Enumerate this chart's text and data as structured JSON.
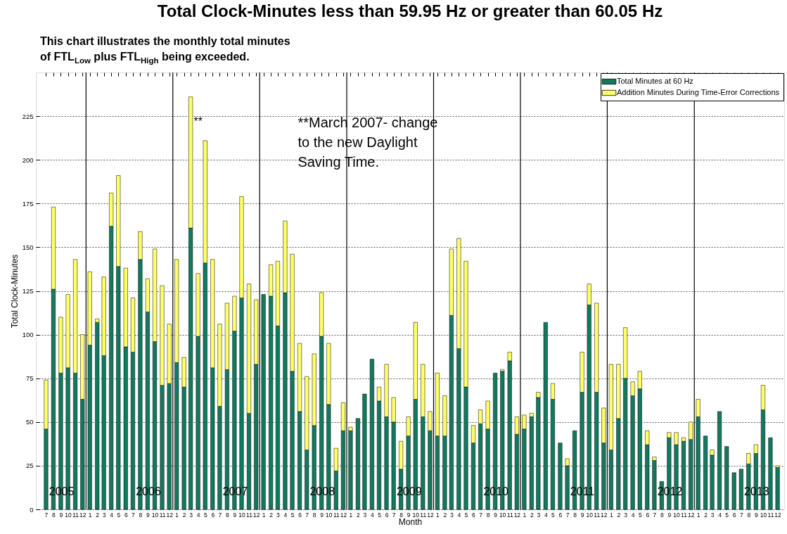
{
  "chart_data": {
    "type": "bar",
    "stacked": true,
    "title": "Total Clock-Minutes less than 59.95 Hz or greater than 60.05 Hz",
    "subtitle": "This chart illustrates the monthly total minutes\nof FTL$_{Low}$ plus FTL$_{High}$ being exceeded.",
    "xlabel": "Month",
    "ylabel": "Total Clock-Minutes",
    "x": [
      "2005-07",
      "2005-08",
      "2005-09",
      "2005-10",
      "2005-11",
      "2005-12",
      "2006-01",
      "2006-02",
      "2006-03",
      "2006-04",
      "2006-05",
      "2006-06",
      "2006-07",
      "2006-08",
      "2006-09",
      "2006-10",
      "2006-11",
      "2006-12",
      "2007-01",
      "2007-02",
      "2007-03",
      "2007-04",
      "2007-05",
      "2007-06",
      "2007-07",
      "2007-08",
      "2007-09",
      "2007-10",
      "2007-11",
      "2007-12",
      "2008-01",
      "2008-02",
      "2008-03",
      "2008-04",
      "2008-05",
      "2008-06",
      "2008-07",
      "2008-08",
      "2008-09",
      "2008-10",
      "2008-11",
      "2008-12",
      "2009-01",
      "2009-02",
      "2009-03",
      "2009-04",
      "2009-05",
      "2009-06",
      "2009-07",
      "2009-08",
      "2009-09",
      "2009-10",
      "2009-11",
      "2009-12",
      "2010-01",
      "2010-02",
      "2010-03",
      "2010-04",
      "2010-05",
      "2010-06",
      "2010-07",
      "2010-08",
      "2010-09",
      "2010-10",
      "2010-11",
      "2010-12",
      "2011-01",
      "2011-02",
      "2011-03",
      "2011-04",
      "2011-05",
      "2011-06",
      "2011-07",
      "2011-08",
      "2011-09",
      "2011-10",
      "2011-11",
      "2011-12",
      "2012-01",
      "2012-02",
      "2012-03",
      "2012-04",
      "2012-05",
      "2012-06",
      "2012-07",
      "2012-08",
      "2012-09",
      "2012-10",
      "2012-11",
      "2012-12",
      "2013-01",
      "2013-02",
      "2013-03",
      "2013-04",
      "2013-05",
      "2013-06",
      "2013-07",
      "2013-08",
      "2013-09",
      "2013-10",
      "2013-11",
      "2013-12"
    ],
    "xlim": [
      "2005-06-03",
      "2013-12-14"
    ],
    "xticks": [
      {
        "value": "2005-07",
        "label": "7"
      },
      {
        "value": "2005-08",
        "label": "8"
      },
      {
        "value": "2005-09",
        "label": "9"
      },
      {
        "value": "2005-10",
        "label": "10"
      },
      {
        "value": "2005-11",
        "label": "11"
      },
      {
        "value": "2005-12",
        "label": "12"
      },
      {
        "value": "2006-01",
        "label": "1"
      },
      {
        "value": "2006-02",
        "label": "2"
      },
      {
        "value": "2006-03",
        "label": "3"
      },
      {
        "value": "2006-04",
        "label": "4"
      },
      {
        "value": "2006-05",
        "label": "5"
      },
      {
        "value": "2006-06",
        "label": "6"
      },
      {
        "value": "2006-07",
        "label": "7"
      },
      {
        "value": "2006-08",
        "label": "8"
      },
      {
        "value": "2006-09",
        "label": "9"
      },
      {
        "value": "2006-10",
        "label": "10"
      },
      {
        "value": "2006-11",
        "label": "11"
      },
      {
        "value": "2006-12",
        "label": "12"
      },
      {
        "value": "2007-01",
        "label": "1"
      },
      {
        "value": "2007-02",
        "label": "2"
      },
      {
        "value": "2007-03",
        "label": "3"
      },
      {
        "value": "2007-04",
        "label": "4"
      },
      {
        "value": "2007-05",
        "label": "5"
      },
      {
        "value": "2007-06",
        "label": "6"
      },
      {
        "value": "2007-07",
        "label": "7"
      },
      {
        "value": "2007-08",
        "label": "8"
      },
      {
        "value": "2007-09",
        "label": "9"
      },
      {
        "value": "2007-10",
        "label": "10"
      },
      {
        "value": "2007-11",
        "label": "11"
      },
      {
        "value": "2007-12",
        "label": "12"
      },
      {
        "value": "2008-01",
        "label": "1"
      },
      {
        "value": "2008-02",
        "label": "2"
      },
      {
        "value": "2008-03",
        "label": "3"
      },
      {
        "value": "2008-04",
        "label": "4"
      },
      {
        "value": "2008-05",
        "label": "5"
      },
      {
        "value": "2008-06",
        "label": "6"
      },
      {
        "value": "2008-07",
        "label": "7"
      },
      {
        "value": "2008-08",
        "label": "8"
      },
      {
        "value": "2008-09",
        "label": "9"
      },
      {
        "value": "2008-10",
        "label": "10"
      },
      {
        "value": "2008-11",
        "label": "11"
      },
      {
        "value": "2008-12",
        "label": "12"
      },
      {
        "value": "2009-01",
        "label": "1"
      },
      {
        "value": "2009-02",
        "label": "2"
      },
      {
        "value": "2009-03",
        "label": "3"
      },
      {
        "value": "2009-04",
        "label": "4"
      },
      {
        "value": "2009-05",
        "label": "5"
      },
      {
        "value": "2009-06",
        "label": "6"
      },
      {
        "value": "2009-07",
        "label": "7"
      },
      {
        "value": "2009-08",
        "label": "8"
      },
      {
        "value": "2009-09",
        "label": "9"
      },
      {
        "value": "2009-10",
        "label": "10"
      },
      {
        "value": "2009-11",
        "label": "11"
      },
      {
        "value": "2009-12",
        "label": "12"
      },
      {
        "value": "2010-01",
        "label": "1"
      },
      {
        "value": "2010-02",
        "label": "2"
      },
      {
        "value": "2010-03",
        "label": "3"
      },
      {
        "value": "2010-04",
        "label": "4"
      },
      {
        "value": "2010-05",
        "label": "5"
      },
      {
        "value": "2010-06",
        "label": "6"
      },
      {
        "value": "2010-07",
        "label": "7"
      },
      {
        "value": "2010-08",
        "label": "8"
      },
      {
        "value": "2010-09",
        "label": "9"
      },
      {
        "value": "2010-10",
        "label": "10"
      },
      {
        "value": "2010-11",
        "label": "11"
      },
      {
        "value": "2010-12",
        "label": "12"
      },
      {
        "value": "2011-01",
        "label": "1"
      },
      {
        "value": "2011-02",
        "label": "2"
      },
      {
        "value": "2011-03",
        "label": "3"
      },
      {
        "value": "2011-04",
        "label": "4"
      },
      {
        "value": "2011-05",
        "label": "5"
      },
      {
        "value": "2011-06",
        "label": "6"
      },
      {
        "value": "2011-07",
        "label": "7"
      },
      {
        "value": "2011-08",
        "label": "8"
      },
      {
        "value": "2011-09",
        "label": "9"
      },
      {
        "value": "2011-10",
        "label": "10"
      },
      {
        "value": "2011-11",
        "label": "11"
      },
      {
        "value": "2011-12",
        "label": "12"
      },
      {
        "value": "2012-01",
        "label": "1"
      },
      {
        "value": "2012-02",
        "label": "2"
      },
      {
        "value": "2012-03",
        "label": "3"
      },
      {
        "value": "2012-04",
        "label": "4"
      },
      {
        "value": "2012-05",
        "label": "5"
      },
      {
        "value": "2012-06",
        "label": "6"
      },
      {
        "value": "2012-07",
        "label": "7"
      },
      {
        "value": "2012-08",
        "label": "8"
      },
      {
        "value": "2012-09",
        "label": "9"
      },
      {
        "value": "2012-10",
        "label": "10"
      },
      {
        "value": "2012-11",
        "label": "11"
      },
      {
        "value": "2012-12",
        "label": "12"
      },
      {
        "value": "2013-01",
        "label": "1"
      },
      {
        "value": "2013-02",
        "label": "2"
      },
      {
        "value": "2013-03",
        "label": "3"
      },
      {
        "value": "2013-04",
        "label": "4"
      },
      {
        "value": "2013-05",
        "label": "5"
      },
      {
        "value": "2013-06",
        "label": "6"
      },
      {
        "value": "2013-07",
        "label": "7"
      },
      {
        "value": "2013-08",
        "label": "8"
      },
      {
        "value": "2013-09",
        "label": "9"
      },
      {
        "value": "2013-10",
        "label": "10"
      },
      {
        "value": "2013-11",
        "label": "11"
      },
      {
        "value": "2013-12",
        "label": "12"
      }
    ],
    "ylim": [
      0,
      250
    ],
    "yticks": [
      0,
      25,
      50,
      75,
      100,
      125,
      150,
      175,
      200,
      225
    ],
    "grid": "y",
    "legend": "top right",
    "series": [
      {
        "name": "Total Minutes at 60 Hz",
        "color": "#117a5e",
        "values": [
          46,
          126,
          78,
          81,
          78,
          63,
          94,
          107,
          88,
          162,
          139,
          93,
          90,
          143,
          113,
          96,
          71,
          72,
          84,
          70,
          161,
          99,
          141,
          81,
          59,
          80,
          102,
          121,
          55,
          83,
          123,
          122,
          105,
          124,
          79,
          56,
          34,
          48,
          99,
          60,
          22,
          45,
          45,
          52,
          66,
          86,
          62,
          53,
          50,
          23,
          42,
          63,
          53,
          45,
          42,
          42,
          111,
          92,
          70,
          38,
          49,
          46,
          78,
          79,
          85,
          43,
          46,
          53,
          64,
          107,
          63,
          38,
          25,
          45,
          67,
          117,
          67,
          38,
          34,
          52,
          75,
          65,
          69,
          37,
          28,
          16,
          41,
          37,
          39,
          40,
          53,
          42,
          31,
          56,
          36,
          21,
          23,
          26,
          32,
          57,
          41,
          24
        ]
      },
      {
        "name": "Addition Minutes During Time-Error Corrections",
        "color": "#ffff66",
        "values": [
          28,
          47,
          32,
          42,
          65,
          37,
          42,
          2,
          45,
          19,
          52,
          45,
          31,
          16,
          19,
          53,
          57,
          34,
          59,
          17,
          75,
          36,
          70,
          62,
          47,
          38,
          20,
          58,
          74,
          37,
          0,
          18,
          37,
          41,
          67,
          39,
          42,
          41,
          25,
          35,
          13,
          16,
          2,
          0,
          0,
          0,
          8,
          30,
          14,
          16,
          11,
          44,
          30,
          11,
          36,
          23,
          38,
          63,
          72,
          10,
          8,
          16,
          0,
          1,
          5,
          10,
          8,
          2,
          3,
          0,
          9,
          0,
          4,
          0,
          23,
          12,
          51,
          20,
          49,
          31,
          29,
          8,
          10,
          8,
          2,
          0,
          3,
          7,
          2,
          10,
          10,
          0,
          3,
          0,
          0,
          0,
          0,
          6,
          5,
          14,
          0,
          1
        ]
      }
    ],
    "ref_lines": [
      {
        "axis": "x",
        "value": "2005-12-16",
        "color": "#000000"
      },
      {
        "axis": "x",
        "value": "2006-12-16",
        "color": "#000000"
      },
      {
        "axis": "x",
        "value": "2007-12-16",
        "color": "#000000"
      },
      {
        "axis": "x",
        "value": "2008-12-16",
        "color": "#000000"
      },
      {
        "axis": "x",
        "value": "2009-12-16",
        "color": "#000000"
      },
      {
        "axis": "x",
        "value": "2010-12-16",
        "color": "#000000"
      },
      {
        "axis": "x",
        "value": "2011-12-16",
        "color": "#000000"
      },
      {
        "axis": "x",
        "value": "2012-12-16",
        "color": "#000000"
      }
    ],
    "annotations": [
      {
        "text": "**",
        "x": "2007-03",
        "y": 222
      },
      "**March 2007- change\nto the new Daylight\nSaving Time.",
      {
        "text": "2005",
        "x": "2005-07",
        "y": 10
      },
      {
        "text": "2006",
        "x": "2006-07",
        "y": 10
      },
      {
        "text": "2007",
        "x": "2007-07",
        "y": 10
      },
      {
        "text": "2008",
        "x": "2008-07",
        "y": 10
      },
      {
        "text": "2009",
        "x": "2009-07",
        "y": 10
      },
      {
        "text": "2010",
        "x": "2010-07",
        "y": 10
      },
      {
        "text": "2011",
        "x": "2011-07",
        "y": 10
      },
      {
        "text": "2012",
        "x": "2012-07",
        "y": 10
      },
      {
        "text": "2013",
        "x": "2013-07",
        "y": 10
      }
    ]
  }
}
